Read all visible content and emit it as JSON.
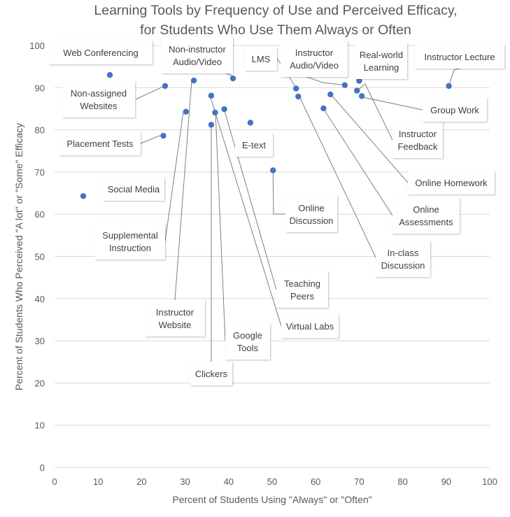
{
  "chart_data": {
    "type": "scatter",
    "title": [
      "Learning Tools by Frequency of Use and Perceived Efficacy,",
      "for Students Who Use Them Always or Often"
    ],
    "xlabel": "Percent of Students Using \"Always\" or \"Often\"",
    "ylabel": "Percent of Students Who Perceived \"A lot\" or \"Some\" Efficacy",
    "xlim": [
      0,
      100
    ],
    "ylim": [
      0,
      100
    ],
    "x_ticks": [
      0,
      10,
      20,
      30,
      40,
      50,
      60,
      70,
      80,
      90,
      100
    ],
    "y_ticks": [
      0,
      10,
      20,
      30,
      40,
      50,
      60,
      70,
      80,
      90,
      100
    ],
    "grid": "horizontal",
    "legend": "none",
    "point_color": "#4472c4",
    "points": [
      {
        "label": "Web Conferencing",
        "x": 12.7,
        "y": 93.0
      },
      {
        "label": "Non-assigned Websites",
        "x": 25.4,
        "y": 90.4
      },
      {
        "label": "Placement Tests",
        "x": 25.0,
        "y": 78.6
      },
      {
        "label": "Social Media",
        "x": 6.6,
        "y": 64.3
      },
      {
        "label": "Supplemental Instruction",
        "x": 30.2,
        "y": 84.3
      },
      {
        "label": "Instructor Website",
        "x": 32.0,
        "y": 91.7
      },
      {
        "label": "Non-instructor Audio/Video",
        "x": 41.0,
        "y": 92.2
      },
      {
        "label": "Clickers",
        "x": 36.0,
        "y": 81.2
      },
      {
        "label": "Google Tools",
        "x": 36.9,
        "y": 84.1
      },
      {
        "label": "Virtual Labs",
        "x": 36.0,
        "y": 88.1
      },
      {
        "label": "Teaching Peers",
        "x": 39.0,
        "y": 84.9
      },
      {
        "label": "E-text",
        "x": 45.0,
        "y": 81.7
      },
      {
        "label": "Online Discussion",
        "x": 50.2,
        "y": 70.4
      },
      {
        "label": "LMS",
        "x": 55.5,
        "y": 89.8
      },
      {
        "label": "In-class Discussion",
        "x": 56.0,
        "y": 87.9
      },
      {
        "label": "Online Assessments",
        "x": 61.8,
        "y": 85.1
      },
      {
        "label": "Online Homework",
        "x": 63.4,
        "y": 88.4
      },
      {
        "label": "Instructor Audio/Video",
        "x": 66.7,
        "y": 90.6
      },
      {
        "label": "Real-world Learning",
        "x": 70.0,
        "y": 91.6
      },
      {
        "label": "Instructor Feedback",
        "x": 69.5,
        "y": 89.3
      },
      {
        "label": "Group Work",
        "x": 70.6,
        "y": 88.0
      },
      {
        "label": "Instructor Lecture",
        "x": 90.6,
        "y": 90.4
      }
    ]
  }
}
